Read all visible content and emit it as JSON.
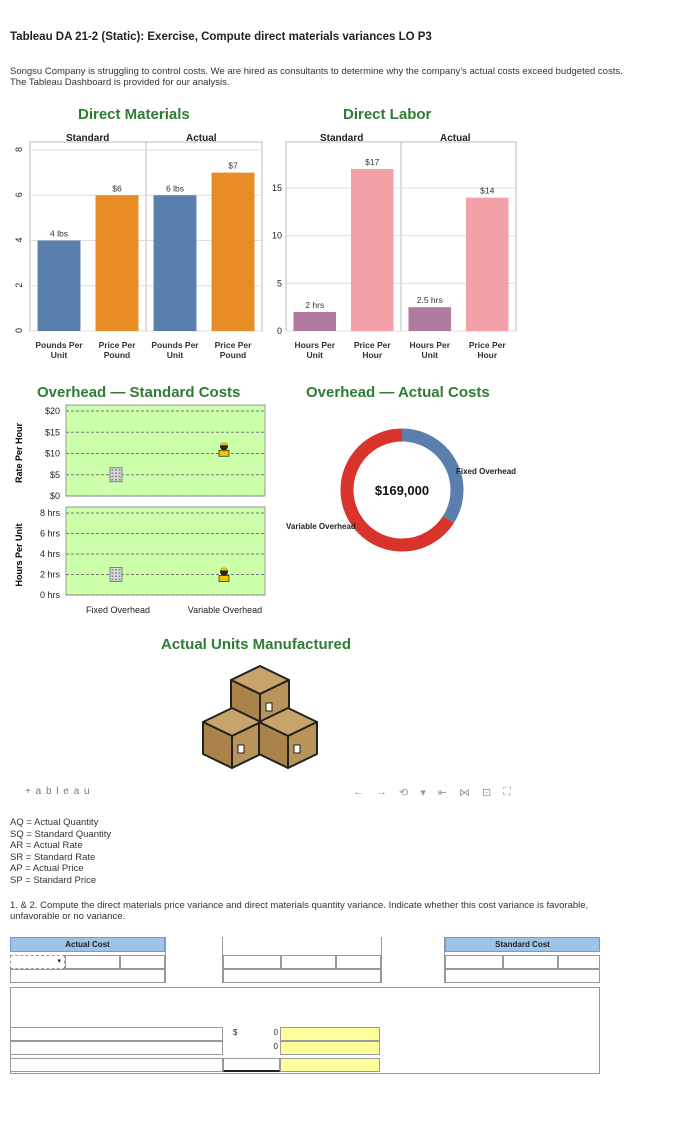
{
  "title": "Tableau DA 21-2 (Static): Exercise, Compute direct materials variances LO P3",
  "intro": "Songsu Company is struggling to control costs. We are hired as consultants to determine why the company’s actual costs exceed budgeted costs. The Tableau Dashboard is provided for our analysis.",
  "dashboard": {
    "direct_materials": {
      "heading": "Direct Materials",
      "standard_label": "Standard",
      "actual_label": "Actual",
      "bar_labels": [
        "4 lbs",
        "$6",
        "6 lbs",
        "$7"
      ],
      "categories": [
        "Pounds Per\nUnit",
        "Price Per\nPound",
        "Pounds Per\nUnit",
        "Price Per\nPound"
      ]
    },
    "direct_labor": {
      "heading": "Direct Labor",
      "standard_label": "Standard",
      "actual_label": "Actual",
      "bar_labels": [
        "2 hrs",
        "$17",
        "2.5 hrs",
        "$14"
      ],
      "categories": [
        "Hours Per\nUnit",
        "Price Per\nHour",
        "Hours Per\nUnit",
        "Price Per\nHour"
      ]
    },
    "overhead_standard": {
      "heading": "Overhead — Standard Costs",
      "rate_axis_label": "Rate Per Hour",
      "hours_axis_label": "Hours Per Unit",
      "rate_ticks": [
        "$20",
        "$15",
        "$10",
        "$5",
        "$0"
      ],
      "hours_ticks": [
        "8 hrs",
        "6 hrs",
        "4 hrs",
        "2 hrs",
        "0 hrs"
      ],
      "categories": [
        "Fixed Overhead",
        "Variable Overhead"
      ]
    },
    "overhead_actual": {
      "heading": "Overhead — Actual Costs",
      "center_value": "$169,000",
      "labels": [
        "Fixed Overhead",
        "Variable Overhead"
      ]
    },
    "units": {
      "heading": "Actual Units Manufactured"
    },
    "tableau_logo": "+ a b l e a u",
    "toolbar_glyphs": [
      "←",
      "→",
      "⟲",
      "▾",
      "⇤",
      "⋈",
      "⊡",
      "⛶"
    ]
  },
  "definitions": [
    "AQ = Actual Quantity",
    "SQ = Standard Quantity",
    "AR = Actual Rate",
    "SR = Standard Rate",
    "AP = Actual Price",
    "SP = Standard Price"
  ],
  "question": "1. & 2. Compute the direct materials price variance and direct materials quantity variance. Indicate whether this cost variance is favorable, unfavorable or no variance.",
  "answer": {
    "actual_cost_header": "Actual Cost",
    "standard_cost_header": "Standard Cost",
    "dollar": "$",
    "zero": "0"
  },
  "chart_data": [
    {
      "type": "bar",
      "name_ref": "Direct Materials",
      "categories": [
        "Pounds Per Unit",
        "Price Per Pound",
        "Pounds Per Unit",
        "Price Per Pound"
      ],
      "groups": [
        "Standard",
        "Standard",
        "Actual",
        "Actual"
      ],
      "values": [
        4,
        6,
        6,
        7
      ],
      "colors": [
        "#5b7fad",
        "#e88d25",
        "#5b7fad",
        "#e88d25"
      ],
      "ylim": [
        0,
        8
      ],
      "yticks": [
        0,
        2,
        4,
        6,
        8
      ]
    },
    {
      "type": "bar",
      "name_ref": "Direct Labor",
      "categories": [
        "Hours Per Unit",
        "Price Per Hour",
        "Hours Per Unit",
        "Price Per Hour"
      ],
      "groups": [
        "Standard",
        "Standard",
        "Actual",
        "Actual"
      ],
      "values": [
        2,
        17,
        2.5,
        14
      ],
      "colors": [
        "#b07aa1",
        "#f4a0a8",
        "#b07aa1",
        "#f4a0a8"
      ],
      "ylim": [
        0,
        19
      ],
      "yticks": [
        0,
        5,
        10,
        15
      ]
    },
    {
      "type": "scatter",
      "name_ref": "Overhead — Standard Costs",
      "rate_values": {
        "Fixed Overhead": 5,
        "Variable Overhead": 11
      },
      "hours_values": {
        "Fixed Overhead": 2,
        "Variable Overhead": 2
      },
      "rate_ylim": [
        0,
        20
      ],
      "hours_ylim": [
        0,
        8
      ]
    },
    {
      "type": "pie",
      "name_ref": "Overhead — Actual Costs",
      "slices": [
        {
          "label": "Fixed Overhead",
          "fraction": 0.34,
          "color": "#5b7fad"
        },
        {
          "label": "Variable Overhead",
          "fraction": 0.66,
          "color": "#d9342b"
        }
      ],
      "total": "$169,000"
    }
  ]
}
